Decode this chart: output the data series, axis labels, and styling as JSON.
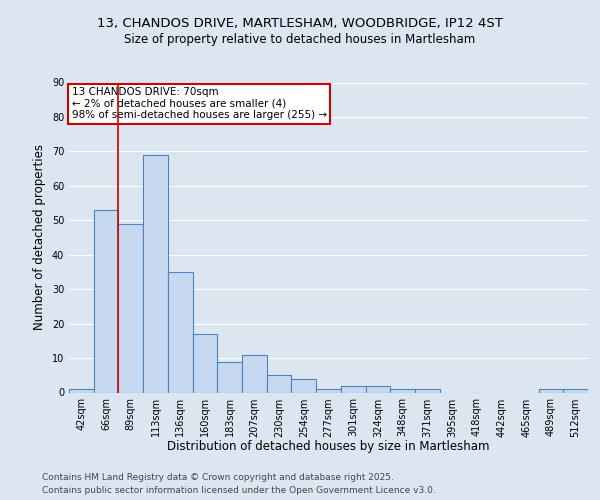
{
  "title_line1": "13, CHANDOS DRIVE, MARTLESHAM, WOODBRIDGE, IP12 4ST",
  "title_line2": "Size of property relative to detached houses in Martlesham",
  "xlabel": "Distribution of detached houses by size in Martlesham",
  "ylabel": "Number of detached properties",
  "categories": [
    "42sqm",
    "66sqm",
    "89sqm",
    "113sqm",
    "136sqm",
    "160sqm",
    "183sqm",
    "207sqm",
    "230sqm",
    "254sqm",
    "277sqm",
    "301sqm",
    "324sqm",
    "348sqm",
    "371sqm",
    "395sqm",
    "418sqm",
    "442sqm",
    "465sqm",
    "489sqm",
    "512sqm"
  ],
  "values": [
    1,
    53,
    49,
    69,
    35,
    17,
    9,
    11,
    5,
    4,
    1,
    2,
    2,
    1,
    1,
    0,
    0,
    0,
    0,
    1,
    1
  ],
  "bar_color": "#c6d9f0",
  "bar_edge_color": "#4f81bd",
  "bar_edge_width": 0.8,
  "red_line_x": 1.5,
  "annotation_title": "13 CHANDOS DRIVE: 70sqm",
  "annotation_line1": "← 2% of detached houses are smaller (4)",
  "annotation_line2": "98% of semi-detached houses are larger (255) →",
  "annotation_box_color": "#ffffff",
  "annotation_box_edge_color": "#cc0000",
  "footer_line1": "Contains HM Land Registry data © Crown copyright and database right 2025.",
  "footer_line2": "Contains public sector information licensed under the Open Government Licence v3.0.",
  "ylim": [
    0,
    90
  ],
  "yticks": [
    0,
    10,
    20,
    30,
    40,
    50,
    60,
    70,
    80,
    90
  ],
  "background_color": "#dce6f1",
  "plot_background": "#dce6f1",
  "grid_color": "#ffffff",
  "title_fontsize": 9.5,
  "subtitle_fontsize": 8.5,
  "axis_label_fontsize": 8.5,
  "tick_fontsize": 7,
  "footer_fontsize": 6.5,
  "annotation_fontsize": 7.5
}
